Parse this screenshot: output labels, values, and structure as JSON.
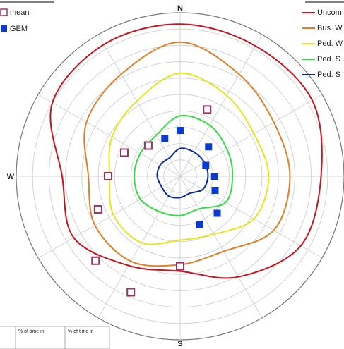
{
  "chart_data": {
    "type": "polar",
    "angles": [
      0,
      30,
      60,
      90,
      120,
      150,
      180,
      210,
      240,
      270,
      300,
      330
    ],
    "rlim": [
      0,
      10
    ],
    "rticks": [
      1,
      2,
      3,
      4,
      5,
      6,
      7,
      8,
      9,
      10
    ],
    "grid": true,
    "directions": [
      "N",
      "W",
      "S"
    ],
    "series": [
      {
        "name": "Uncom",
        "color": "#c8141e",
        "values": [
          9.3,
          9.2,
          9.3,
          8.6,
          8.5,
          7.1,
          5.8,
          6.3,
          7.5,
          7.2,
          9.0,
          9.3
        ]
      },
      {
        "name": "Bus. W",
        "color": "#e0802a",
        "values": [
          8.2,
          7.2,
          6.6,
          6.7,
          6.6,
          5.3,
          5.4,
          6.0,
          6.0,
          5.6,
          6.6,
          7.2
        ]
      },
      {
        "name": "Ped. W",
        "color": "#e6e61e",
        "values": [
          6.3,
          5.7,
          5.2,
          5.4,
          5.2,
          4.1,
          3.9,
          4.7,
          4.7,
          4.3,
          4.8,
          5.3
        ]
      },
      {
        "name": "Ped. S",
        "color": "#33dd44",
        "values": [
          3.7,
          3.6,
          3.3,
          3.2,
          3.2,
          2.3,
          2.4,
          2.5,
          2.8,
          2.8,
          2.8,
          2.9
        ]
      },
      {
        "name": "Ped. S",
        "color": "#0a2a9a",
        "values": [
          1.7,
          1.7,
          1.7,
          1.7,
          1.6,
          1.2,
          1.3,
          1.4,
          1.3,
          1.4,
          1.4,
          1.3
        ]
      }
    ],
    "points": [
      {
        "name": "mean",
        "color": "#993366",
        "filled": false,
        "angles": [
          22,
          293,
          314,
          270,
          248,
          225,
          180,
          203
        ],
        "values": [
          4.4,
          3.7,
          2.7,
          4.4,
          5.4,
          7.3,
          5.5,
          7.7
        ]
      },
      {
        "name": "GEM",
        "color": "#0a3ad0",
        "filled": true,
        "angles": [
          0,
          338,
          44,
          67,
          90,
          112,
          135,
          158
        ],
        "values": [
          2.8,
          2.5,
          2.5,
          1.7,
          2.1,
          2.3,
          3.2,
          3.2
        ]
      }
    ],
    "table": {
      "headers": [
        "% of time in",
        "% of time in"
      ]
    }
  }
}
